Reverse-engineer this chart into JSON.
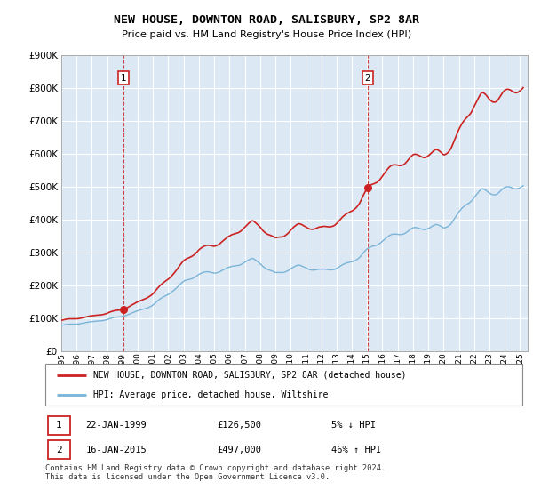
{
  "title": "NEW HOUSE, DOWNTON ROAD, SALISBURY, SP2 8AR",
  "subtitle": "Price paid vs. HM Land Registry's House Price Index (HPI)",
  "legend_line1": "NEW HOUSE, DOWNTON ROAD, SALISBURY, SP2 8AR (detached house)",
  "legend_line2": "HPI: Average price, detached house, Wiltshire",
  "sale1_date": "22-JAN-1999",
  "sale1_price": "£126,500",
  "sale1_hpi": "5% ↓ HPI",
  "sale2_date": "16-JAN-2015",
  "sale2_price": "£497,000",
  "sale2_hpi": "46% ↑ HPI",
  "footnote": "Contains HM Land Registry data © Crown copyright and database right 2024.\nThis data is licensed under the Open Government Licence v3.0.",
  "hpi_color": "#7ab4d8",
  "price_color": "#cc2222",
  "vline_color": "#cc2222",
  "bg_color": "#dce9f5",
  "ylim": [
    0,
    900000
  ],
  "yticks": [
    0,
    100000,
    200000,
    300000,
    400000,
    500000,
    600000,
    700000,
    800000,
    900000
  ],
  "sale1_year": 1999.06,
  "sale2_year": 2015.04,
  "sale1_price_val": 126500,
  "sale2_price_val": 497000
}
